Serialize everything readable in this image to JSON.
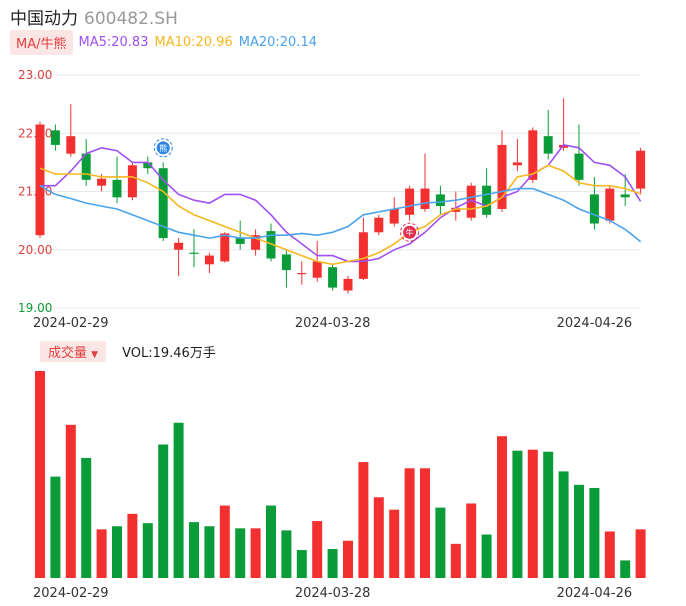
{
  "header": {
    "name": "中国动力",
    "code": "600482.SH"
  },
  "ma_legend": {
    "button": "MA/牛熊",
    "items": [
      {
        "label": "MA5:20.83",
        "color": "#a050f0"
      },
      {
        "label": "MA10:20.96",
        "color": "#f5b820"
      },
      {
        "label": "MA20:20.14",
        "color": "#4aa3ee"
      }
    ]
  },
  "volume_legend": {
    "button": "成交量",
    "arrow": "▼",
    "label": "VOL:19.46万手"
  },
  "markers": [
    {
      "label": "熊",
      "index": 8,
      "price": 21.75,
      "color": "#2b86e6"
    },
    {
      "label": "牛",
      "index": 24,
      "price": 20.3,
      "color": "#e03050"
    }
  ],
  "colors": {
    "up": "#f23030",
    "down": "#0a9c38",
    "grid": "#e8e8e8",
    "axis_text": "#e04040"
  },
  "chart_data": [
    {
      "type": "candlestick",
      "y_ticks": [
        "23.00",
        "22.00",
        "21.00",
        "20.00",
        "19.00"
      ],
      "ylim": [
        19.0,
        23.0
      ],
      "x_ticks": [
        {
          "label": "2024-02-29",
          "index": 2
        },
        {
          "label": "2024-03-28",
          "index": 19
        },
        {
          "label": "2024-04-26",
          "index": 36
        }
      ],
      "candles": [
        {
          "o": 20.25,
          "c": 22.15,
          "h": 22.2,
          "l": 20.2
        },
        {
          "o": 22.05,
          "c": 21.8,
          "h": 22.15,
          "l": 21.7
        },
        {
          "o": 21.65,
          "c": 21.95,
          "h": 22.5,
          "l": 21.6
        },
        {
          "o": 21.65,
          "c": 21.2,
          "h": 21.9,
          "l": 21.1
        },
        {
          "o": 21.1,
          "c": 21.22,
          "h": 21.3,
          "l": 21.0
        },
        {
          "o": 21.2,
          "c": 20.9,
          "h": 21.6,
          "l": 20.8
        },
        {
          "o": 20.9,
          "c": 21.45,
          "h": 21.5,
          "l": 20.85
        },
        {
          "o": 21.5,
          "c": 21.4,
          "h": 21.6,
          "l": 21.3
        },
        {
          "o": 21.4,
          "c": 20.2,
          "h": 21.5,
          "l": 20.15
        },
        {
          "o": 20.0,
          "c": 20.12,
          "h": 20.2,
          "l": 19.55
        },
        {
          "o": 19.95,
          "c": 19.94,
          "h": 20.35,
          "l": 19.7
        },
        {
          "o": 19.75,
          "c": 19.9,
          "h": 19.95,
          "l": 19.6
        },
        {
          "o": 19.8,
          "c": 20.28,
          "h": 20.3,
          "l": 19.78
        },
        {
          "o": 20.2,
          "c": 20.1,
          "h": 20.5,
          "l": 20.0
        },
        {
          "o": 20.0,
          "c": 20.25,
          "h": 20.35,
          "l": 19.9
        },
        {
          "o": 20.32,
          "c": 19.85,
          "h": 20.45,
          "l": 19.8
        },
        {
          "o": 19.92,
          "c": 19.65,
          "h": 20.0,
          "l": 19.35
        },
        {
          "o": 19.6,
          "c": 19.6,
          "h": 19.8,
          "l": 19.4
        },
        {
          "o": 19.52,
          "c": 19.8,
          "h": 20.15,
          "l": 19.45
        },
        {
          "o": 19.7,
          "c": 19.35,
          "h": 19.75,
          "l": 19.3
        },
        {
          "o": 19.3,
          "c": 19.5,
          "h": 19.55,
          "l": 19.25
        },
        {
          "o": 19.5,
          "c": 20.3,
          "h": 20.55,
          "l": 19.48
        },
        {
          "o": 20.3,
          "c": 20.55,
          "h": 20.6,
          "l": 20.25
        },
        {
          "o": 20.45,
          "c": 20.7,
          "h": 20.9,
          "l": 20.4
        },
        {
          "o": 20.6,
          "c": 21.05,
          "h": 21.1,
          "l": 20.5
        },
        {
          "o": 20.7,
          "c": 21.05,
          "h": 21.65,
          "l": 20.65
        },
        {
          "o": 20.95,
          "c": 20.75,
          "h": 21.1,
          "l": 20.6
        },
        {
          "o": 20.65,
          "c": 20.72,
          "h": 21.0,
          "l": 20.5
        },
        {
          "o": 20.55,
          "c": 21.1,
          "h": 21.15,
          "l": 20.5
        },
        {
          "o": 21.1,
          "c": 20.6,
          "h": 21.4,
          "l": 20.55
        },
        {
          "o": 20.7,
          "c": 21.8,
          "h": 22.05,
          "l": 20.65
        },
        {
          "o": 21.45,
          "c": 21.5,
          "h": 21.9,
          "l": 21.35
        },
        {
          "o": 21.2,
          "c": 22.05,
          "h": 22.1,
          "l": 21.15
        },
        {
          "o": 21.95,
          "c": 21.65,
          "h": 22.4,
          "l": 21.55
        },
        {
          "o": 21.75,
          "c": 21.8,
          "h": 22.6,
          "l": 21.7
        },
        {
          "o": 21.65,
          "c": 21.2,
          "h": 22.15,
          "l": 21.1
        },
        {
          "o": 20.95,
          "c": 20.45,
          "h": 21.25,
          "l": 20.35
        },
        {
          "o": 20.5,
          "c": 21.05,
          "h": 21.1,
          "l": 20.45
        },
        {
          "o": 20.95,
          "c": 20.9,
          "h": 21.3,
          "l": 20.75
        },
        {
          "o": 21.05,
          "c": 21.7,
          "h": 21.75,
          "l": 20.95
        }
      ],
      "series": [
        {
          "name": "MA5",
          "color": "#a050f0",
          "values": [
            21.1,
            21.1,
            21.35,
            21.65,
            21.75,
            21.7,
            21.5,
            21.5,
            21.2,
            20.95,
            20.85,
            20.8,
            20.95,
            20.95,
            20.85,
            20.6,
            20.3,
            20.1,
            19.9,
            19.9,
            19.8,
            19.8,
            19.85,
            20.0,
            20.1,
            20.3,
            20.55,
            20.72,
            20.85,
            20.75,
            20.9,
            21.0,
            21.3,
            21.45,
            21.8,
            21.75,
            21.5,
            21.45,
            21.25,
            20.83
          ]
        },
        {
          "name": "MA10",
          "color": "#f5b820",
          "values": [
            21.4,
            21.3,
            21.3,
            21.3,
            21.25,
            21.25,
            21.25,
            21.15,
            21.0,
            20.75,
            20.6,
            20.5,
            20.4,
            20.3,
            20.2,
            20.1,
            20.0,
            19.9,
            19.8,
            19.75,
            19.8,
            19.85,
            19.95,
            20.1,
            20.3,
            20.4,
            20.6,
            20.7,
            20.7,
            20.75,
            20.9,
            21.25,
            21.3,
            21.45,
            21.35,
            21.15,
            21.1,
            21.1,
            21.05,
            20.96
          ]
        },
        {
          "name": "MA20",
          "color": "#4aa3ee",
          "values": [
            21.1,
            20.95,
            20.88,
            20.8,
            20.75,
            20.7,
            20.6,
            20.5,
            20.4,
            20.3,
            20.25,
            20.2,
            20.25,
            20.2,
            20.2,
            20.25,
            20.25,
            20.28,
            20.25,
            20.3,
            20.4,
            20.6,
            20.65,
            20.7,
            20.75,
            20.8,
            20.82,
            20.85,
            20.9,
            20.95,
            21.0,
            21.05,
            21.05,
            20.95,
            20.85,
            20.7,
            20.6,
            20.5,
            20.35,
            20.14
          ]
        }
      ]
    },
    {
      "type": "bar",
      "title": "成交量",
      "x_ticks": [
        {
          "label": "2024-02-29",
          "index": 2
        },
        {
          "label": "2024-03-28",
          "index": 19
        },
        {
          "label": "2024-04-26",
          "index": 36
        }
      ],
      "volumes": [
        {
          "v": 200,
          "up": true
        },
        {
          "v": 98,
          "up": false
        },
        {
          "v": 148,
          "up": true
        },
        {
          "v": 116,
          "up": false
        },
        {
          "v": 47,
          "up": true
        },
        {
          "v": 50,
          "up": false
        },
        {
          "v": 62,
          "up": true
        },
        {
          "v": 53,
          "up": false
        },
        {
          "v": 129,
          "up": false
        },
        {
          "v": 150,
          "up": false
        },
        {
          "v": 54,
          "up": false
        },
        {
          "v": 50,
          "up": false
        },
        {
          "v": 70,
          "up": true
        },
        {
          "v": 48,
          "up": false
        },
        {
          "v": 48,
          "up": true
        },
        {
          "v": 70,
          "up": false
        },
        {
          "v": 46,
          "up": false
        },
        {
          "v": 27,
          "up": false
        },
        {
          "v": 55,
          "up": true
        },
        {
          "v": 28,
          "up": false
        },
        {
          "v": 36,
          "up": true
        },
        {
          "v": 112,
          "up": true
        },
        {
          "v": 78,
          "up": true
        },
        {
          "v": 66,
          "up": true
        },
        {
          "v": 106,
          "up": true
        },
        {
          "v": 106,
          "up": true
        },
        {
          "v": 68,
          "up": false
        },
        {
          "v": 33,
          "up": true
        },
        {
          "v": 72,
          "up": true
        },
        {
          "v": 42,
          "up": false
        },
        {
          "v": 137,
          "up": true
        },
        {
          "v": 123,
          "up": false
        },
        {
          "v": 124,
          "up": true
        },
        {
          "v": 122,
          "up": false
        },
        {
          "v": 103,
          "up": false
        },
        {
          "v": 90,
          "up": false
        },
        {
          "v": 87,
          "up": false
        },
        {
          "v": 45,
          "up": true
        },
        {
          "v": 17,
          "up": false
        },
        {
          "v": 47,
          "up": true
        }
      ]
    }
  ]
}
